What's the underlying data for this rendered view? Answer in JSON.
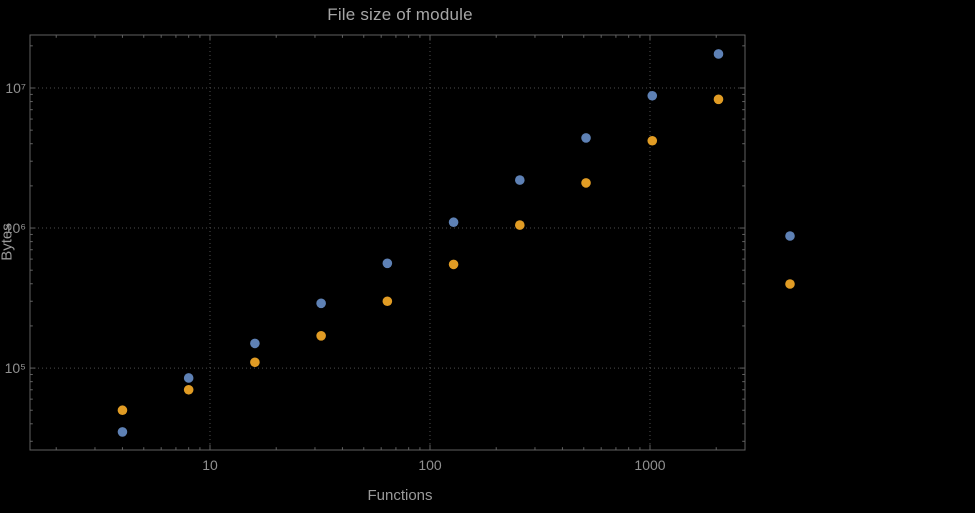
{
  "chart_data": {
    "type": "scatter",
    "title": "File size of module",
    "xlabel": "Functions",
    "ylabel": "Bytes",
    "x_scale": "log",
    "y_scale": "log",
    "x_tick_values": [
      10,
      100,
      1000
    ],
    "x_tick_labels": [
      "10",
      "100",
      "1000"
    ],
    "y_tick_values": [
      100000,
      1000000,
      10000000
    ],
    "y_tick_labels": [
      "10⁵",
      "10⁶",
      "10⁷"
    ],
    "x_range": [
      1.52,
      2703
    ],
    "y_range": [
      26000,
      23900000
    ],
    "grid": {
      "show": true,
      "style": "dotted",
      "color": "#4e4e4e"
    },
    "frame_color": "#616161",
    "text_color": "#909090",
    "marker_radius": 4.8,
    "series": [
      {
        "name": "series-1",
        "color": "#5e81b5",
        "points": [
          [
            4,
            35000
          ],
          [
            8,
            85000
          ],
          [
            16,
            150000
          ],
          [
            32,
            290000
          ],
          [
            64,
            560000
          ],
          [
            128,
            1100000
          ],
          [
            256,
            2200000
          ],
          [
            512,
            4400000
          ],
          [
            1024,
            8800000
          ],
          [
            2048,
            17500000
          ]
        ]
      },
      {
        "name": "series-2",
        "color": "#e19c24",
        "points": [
          [
            4,
            50000
          ],
          [
            8,
            70000
          ],
          [
            16,
            110000
          ],
          [
            32,
            170000
          ],
          [
            64,
            300000
          ],
          [
            128,
            550000
          ],
          [
            256,
            1050000
          ],
          [
            512,
            2100000
          ],
          [
            1024,
            4200000
          ],
          [
            2048,
            8300000
          ]
        ]
      }
    ],
    "legend": {
      "position": "right-of-frame",
      "labels_visible": false,
      "items": [
        {
          "name": "series-1-marker",
          "color": "#5e81b5"
        },
        {
          "name": "series-2-marker",
          "color": "#e19c24"
        }
      ]
    }
  }
}
